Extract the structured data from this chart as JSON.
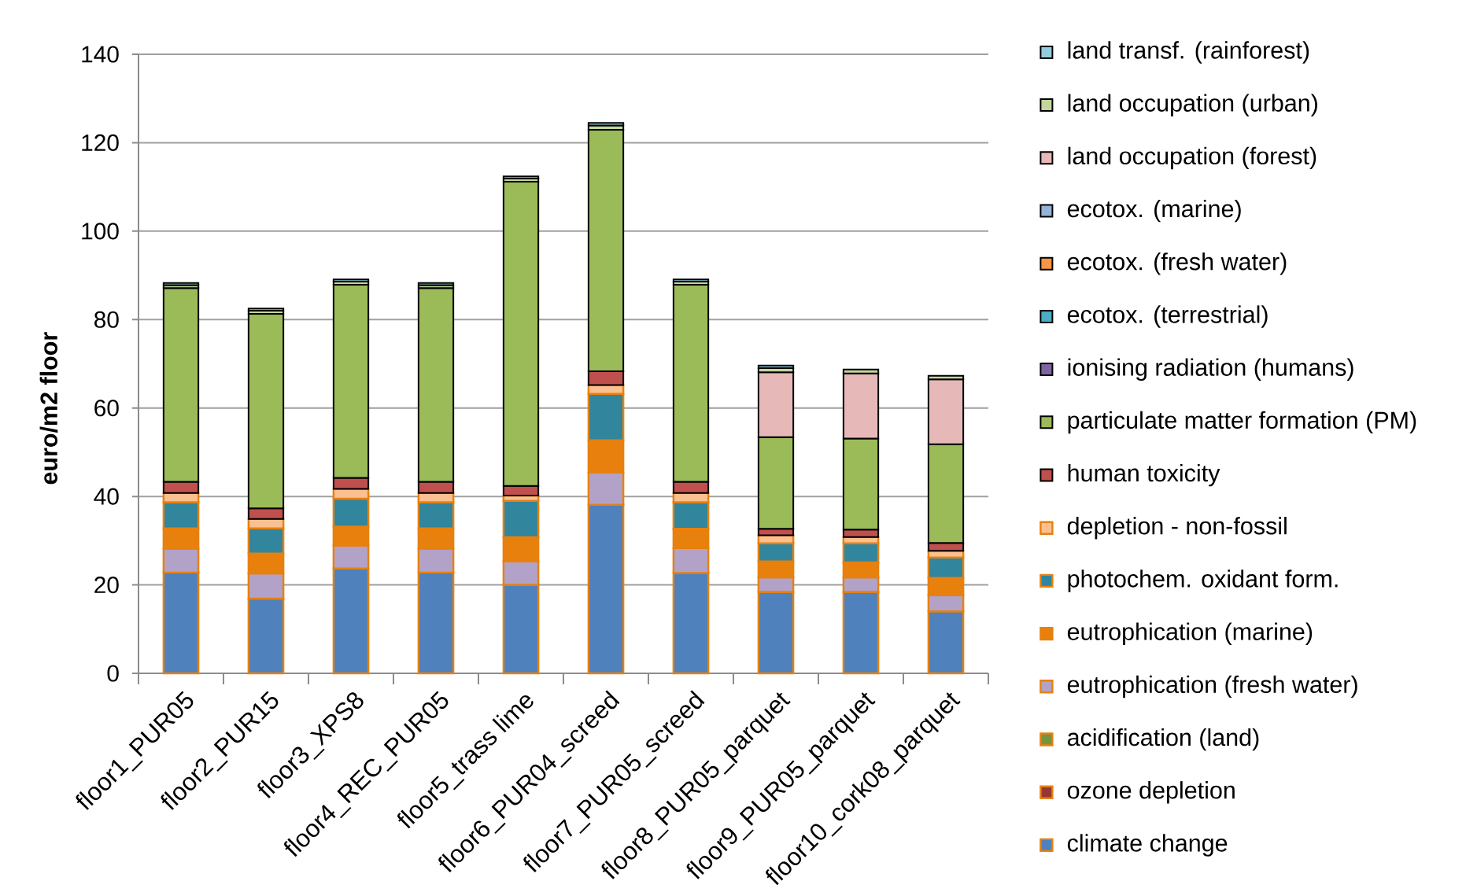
{
  "chart_data": {
    "type": "bar",
    "stacked": true,
    "ylabel": "euro/m2 floor",
    "categories": [
      "floor1_PUR05",
      "floor2_PUR15",
      "floor3_XPS8",
      "floor4_REC_PUR05",
      "floor5_trass lime",
      "floor6_PUR04_screed",
      "floor7_PUR05_screed",
      "floor8_PUR05_parquet",
      "floor9_PUR05_parquet",
      "floor10_cork08_parquet"
    ],
    "ylim": [
      0,
      140
    ],
    "yticks": [
      0,
      20,
      40,
      60,
      80,
      100,
      120,
      140
    ],
    "grid": "y",
    "legend": "right",
    "series": [
      {
        "name": "climate change",
        "color": "#4F81BD",
        "values": [
          22.8,
          16.9,
          23.7,
          22.8,
          20.0,
          38.1,
          22.7,
          18.4,
          18.4,
          14.0
        ]
      },
      {
        "name": "ozone depletion",
        "color": "#953735",
        "values": [
          null,
          null,
          null,
          null,
          null,
          null,
          null,
          null,
          null,
          null
        ]
      },
      {
        "name": "acidification (land)",
        "color": "#77933C",
        "values": [
          null,
          null,
          null,
          null,
          null,
          null,
          null,
          null,
          null,
          null
        ]
      },
      {
        "name": "eutrophication (fresh water)",
        "color": "#B3A2C7",
        "values": [
          5.4,
          5.7,
          5.2,
          5.4,
          5.3,
          7.3,
          5.6,
          3.3,
          3.3,
          3.7
        ]
      },
      {
        "name": "eutrophication (marine)",
        "color": "#E8800E",
        "values": [
          4.6,
          4.5,
          4.3,
          4.6,
          5.5,
          7.3,
          4.4,
          3.6,
          3.4,
          3.9
        ]
      },
      {
        "name": "photochem. oxidant form.",
        "color": "#31859C",
        "values": [
          5.9,
          5.7,
          6.3,
          5.9,
          8.2,
          10.5,
          6.0,
          4.1,
          4.3,
          4.6
        ]
      },
      {
        "name": "depletion - non-fossil",
        "color": "#FAC090",
        "values": [
          2.1,
          2.1,
          2.2,
          2.1,
          1.2,
          2.0,
          2.1,
          1.8,
          1.4,
          1.5
        ]
      },
      {
        "name": "human toxicity",
        "color": "#C0504D",
        "values": [
          2.5,
          2.4,
          2.5,
          2.5,
          2.2,
          3.1,
          2.5,
          1.5,
          1.7,
          1.8
        ]
      },
      {
        "name": "particulate matter formation (PM)",
        "color": "#9BBB59",
        "values": [
          43.8,
          44.0,
          43.7,
          43.8,
          68.8,
          54.6,
          44.6,
          20.7,
          20.6,
          22.3
        ]
      },
      {
        "name": "ionising radiation (humans)",
        "color": "#8064A2",
        "values": [
          null,
          null,
          null,
          null,
          null,
          null,
          null,
          null,
          null,
          null
        ]
      },
      {
        "name": "ecotox. (terrestrial)",
        "color": "#4BACC6",
        "values": [
          null,
          null,
          null,
          null,
          null,
          null,
          null,
          null,
          null,
          null
        ]
      },
      {
        "name": "ecotox. (fresh water)",
        "color": "#F79646",
        "values": [
          null,
          null,
          null,
          null,
          null,
          null,
          null,
          null,
          null,
          null
        ]
      },
      {
        "name": "ecotox. (marine)",
        "color": "#95B3D7",
        "values": [
          null,
          null,
          null,
          null,
          null,
          null,
          null,
          null,
          null,
          null
        ]
      },
      {
        "name": "land occupation (forest)",
        "color": "#E6B9B8",
        "values": [
          null,
          null,
          null,
          null,
          null,
          null,
          null,
          14.7,
          14.7,
          14.7
        ]
      },
      {
        "name": "land occupation (urban)",
        "color": "#C3D69B",
        "values": [
          0.7,
          0.7,
          0.7,
          0.7,
          0.7,
          1.0,
          0.7,
          0.9,
          0.9,
          0.8
        ]
      },
      {
        "name": "land transf. (rainforest)",
        "color": "#93CDDD",
        "values": [
          0.5,
          0.5,
          0.5,
          0.5,
          0.5,
          0.6,
          0.5,
          0.6,
          null,
          null
        ]
      }
    ]
  }
}
